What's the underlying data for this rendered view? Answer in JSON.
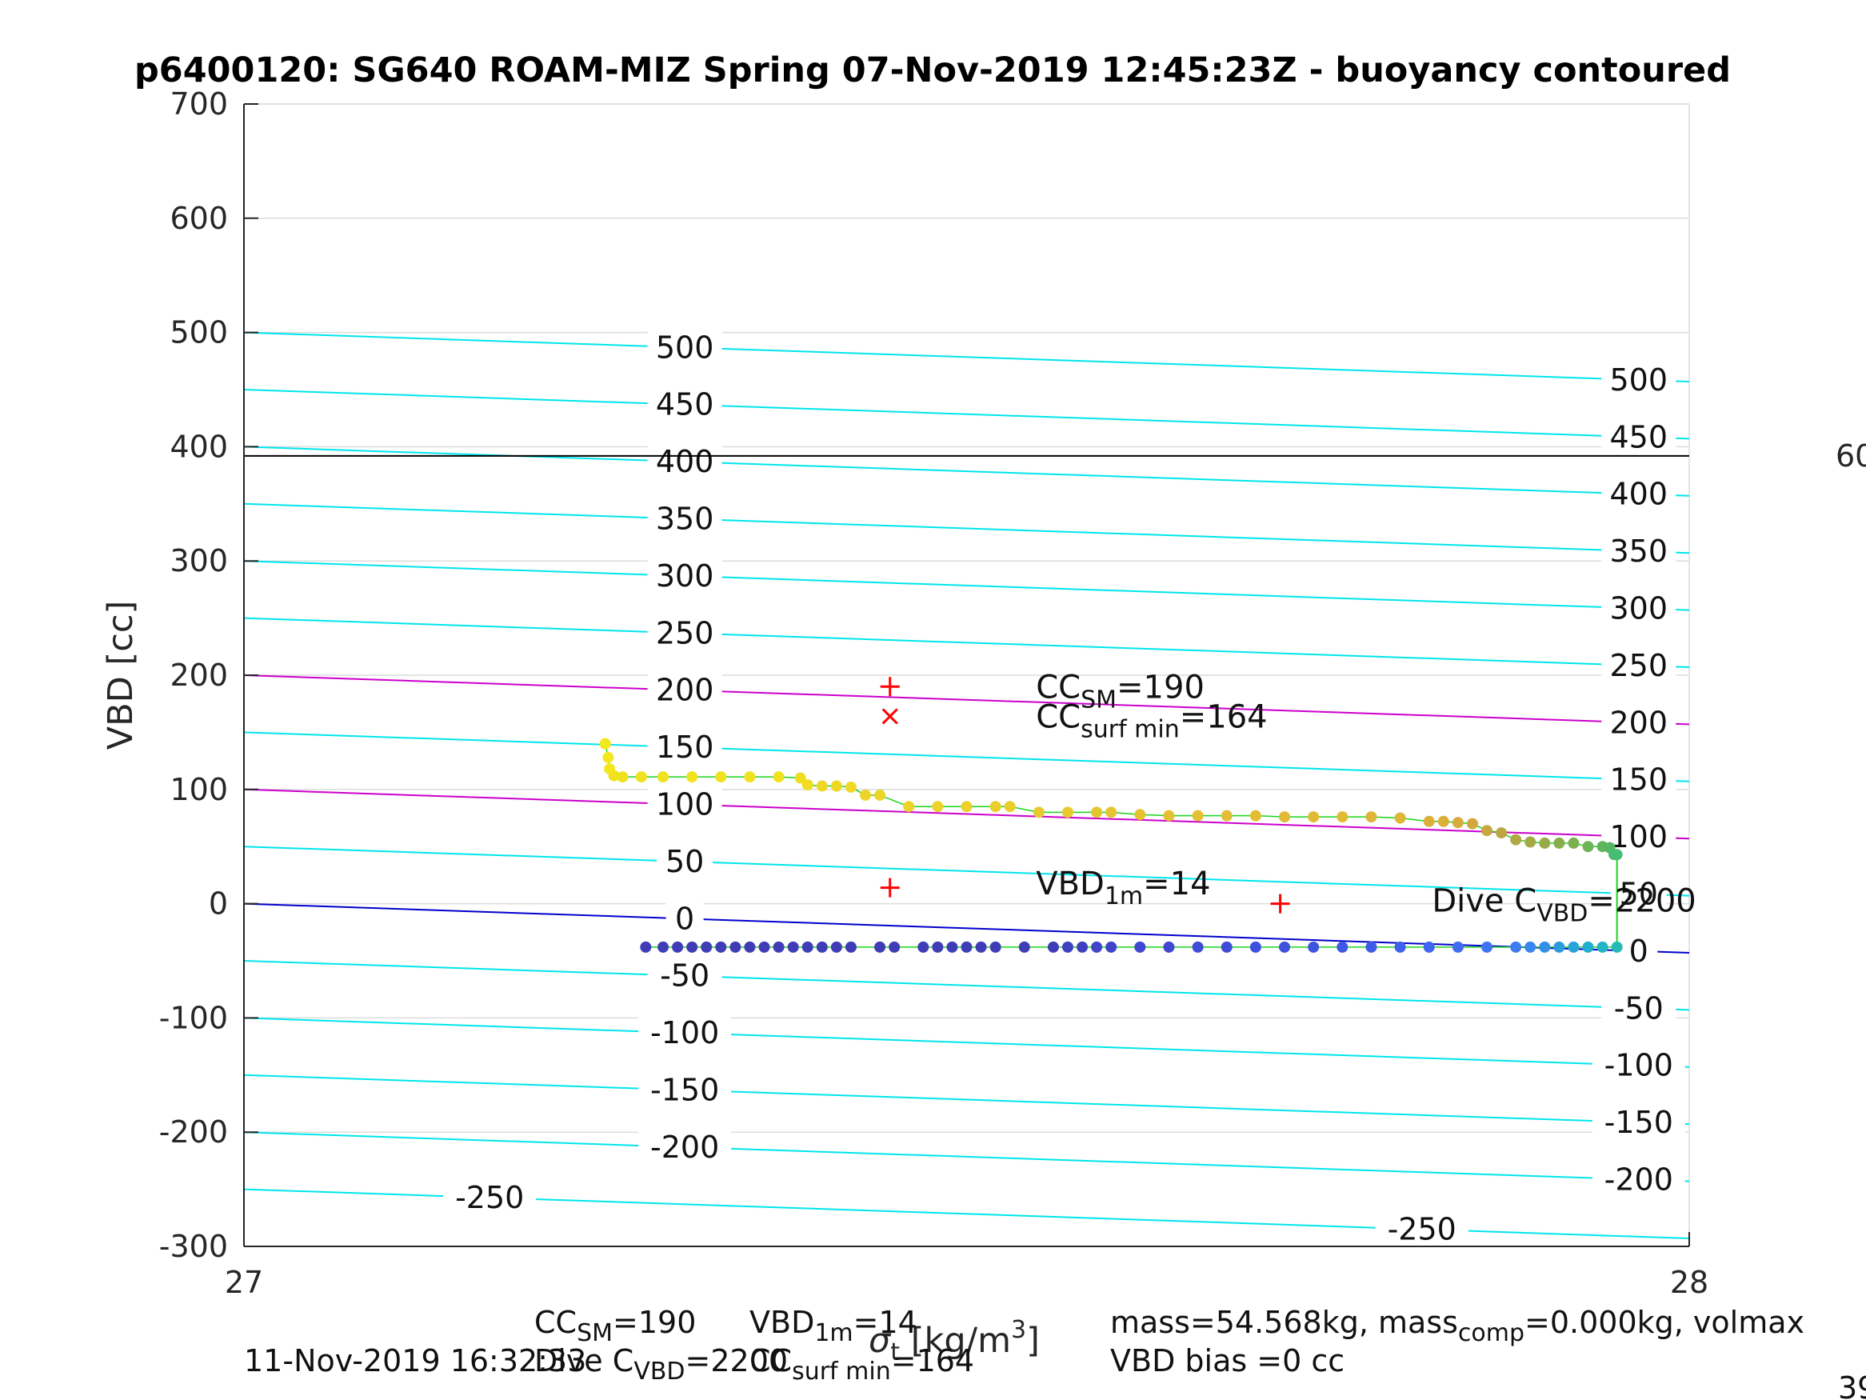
{
  "chart_data": {
    "type": "scatter",
    "title": "p6400120: SG640 ROAM-MIZ Spring 07-Nov-2019 12:45:23Z - buoyancy contoured",
    "ylabel": "VBD [cc]",
    "xlabel_main": "σ",
    "xlabel_sub": "t",
    "xlabel_units": " [kg/m",
    "xlabel_units_sup": "3",
    "xlabel_units_end": "]",
    "xlim": [
      27,
      28
    ],
    "ylim": [
      -300,
      700
    ],
    "xticks": [
      "27",
      "28"
    ],
    "yticks": [
      "-300",
      "-200",
      "-100",
      "0",
      "100",
      "200",
      "300",
      "400",
      "500",
      "600",
      "700"
    ],
    "grid": true,
    "contours": {
      "slope_per_sigma": -43,
      "levels": [
        -250,
        -200,
        -150,
        -100,
        -50,
        0,
        50,
        100,
        150,
        200,
        250,
        300,
        350,
        400,
        450,
        500
      ],
      "labels_left": [
        "-250",
        "-200",
        "-150",
        "-100",
        "-50",
        "0",
        "50",
        "100",
        "150",
        "200",
        "250",
        "300",
        "350",
        "400",
        "450",
        "500"
      ],
      "labels_right": [
        "-250",
        "-200",
        "-150",
        "-100",
        "-50",
        "0",
        "50",
        "100",
        "150",
        "200",
        "250",
        "300",
        "350",
        "400",
        "450",
        "500"
      ],
      "color": "#00e5ee",
      "zero_color": "#0000cc",
      "highlight_levels": [
        100,
        200
      ],
      "highlight_color": "#cc00cc"
    },
    "reference_line": {
      "vbd": 392,
      "color": "#000000",
      "label": "60"
    },
    "series": [
      {
        "role": "climb",
        "x": [
          27.25,
          27.252,
          27.253,
          27.256,
          27.262,
          27.275,
          27.29,
          27.31,
          27.33,
          27.35,
          27.37,
          27.385,
          27.39,
          27.4,
          27.41,
          27.42,
          27.43,
          27.44,
          27.46,
          27.48,
          27.5,
          27.52,
          27.53,
          27.55,
          27.57,
          27.59,
          27.6,
          27.62,
          27.64,
          27.66,
          27.68,
          27.7,
          27.72,
          27.74,
          27.76,
          27.78,
          27.8,
          27.82,
          27.83,
          27.84,
          27.85,
          27.86,
          27.87,
          27.88,
          27.89,
          27.9,
          27.91,
          27.92,
          27.93,
          27.94,
          27.945,
          27.948,
          27.95
        ],
        "y": [
          140,
          128,
          118,
          112,
          111,
          111,
          111,
          111,
          111,
          111,
          111,
          110,
          104,
          103,
          103,
          102,
          95,
          95,
          85,
          85,
          85,
          85,
          85,
          80,
          80,
          80,
          80,
          78,
          77,
          77,
          77,
          77,
          76,
          76,
          76,
          76,
          75,
          72,
          72,
          71,
          70,
          64,
          62,
          56,
          54,
          53,
          53,
          53,
          50,
          50,
          49,
          43,
          43
        ],
        "colors": [
          "#f3e81e",
          "#f3e81e",
          "#f3e81e",
          "#f1e21f",
          "#f1e21f",
          "#f1e21f",
          "#f1e21f",
          "#f1e21f",
          "#f1e21f",
          "#f1e21f",
          "#f1e21f",
          "#f0dc22",
          "#f0dc22",
          "#efd825",
          "#efd825",
          "#efd825",
          "#eed428",
          "#eed428",
          "#ecd22a",
          "#ecd22a",
          "#ecd22a",
          "#eace2c",
          "#eace2c",
          "#e8ca2e",
          "#e8ca2e",
          "#e6c630",
          "#e6c630",
          "#e6c231",
          "#e4c032",
          "#e4c032",
          "#e3bd34",
          "#e3bd34",
          "#e2ba36",
          "#e2ba36",
          "#e2ba36",
          "#e0b638",
          "#e0b638",
          "#dcaf3a",
          "#dcaf3a",
          "#d7ab3c",
          "#d2a83e",
          "#c8a640",
          "#bea642",
          "#b0a844",
          "#a4aa46",
          "#98ab48",
          "#8aad4c",
          "#7cb050",
          "#6eb356",
          "#60b55c",
          "#54b863",
          "#4cbb6c",
          "#47bd74"
        ]
      },
      {
        "role": "dive",
        "x": [
          27.278,
          27.29,
          27.3,
          27.31,
          27.32,
          27.33,
          27.34,
          27.35,
          27.36,
          27.37,
          27.38,
          27.39,
          27.4,
          27.41,
          27.42,
          27.44,
          27.45,
          27.47,
          27.48,
          27.49,
          27.5,
          27.51,
          27.52,
          27.54,
          27.56,
          27.57,
          27.58,
          27.59,
          27.6,
          27.62,
          27.64,
          27.66,
          27.68,
          27.7,
          27.72,
          27.74,
          27.76,
          27.78,
          27.8,
          27.82,
          27.84,
          27.86,
          27.88,
          27.89,
          27.9,
          27.91,
          27.92,
          27.93,
          27.94,
          27.95
        ],
        "y": [
          -38,
          -38,
          -38,
          -38,
          -38,
          -38,
          -38,
          -38,
          -38,
          -38,
          -38,
          -38,
          -38,
          -38,
          -38,
          -38,
          -38,
          -38,
          -38,
          -38,
          -38,
          -38,
          -38,
          -38,
          -38,
          -38,
          -38,
          -38,
          -38,
          -38,
          -38,
          -38,
          -38,
          -38,
          -38,
          -38,
          -38,
          -38,
          -38,
          -38,
          -38,
          -38,
          -38,
          -38,
          -38,
          -38,
          -38,
          -38,
          -38,
          -38
        ],
        "colors": [
          "#3f3db5",
          "#3f3db5",
          "#3f3db5",
          "#3f3db5",
          "#3f3db5",
          "#3f3db5",
          "#3f3db5",
          "#3f3db5",
          "#3f3db5",
          "#3f3db5",
          "#3f3db5",
          "#3f3db5",
          "#3f3db5",
          "#3f3db5",
          "#3f3db5",
          "#3f3db5",
          "#3f3db5",
          "#3f3db5",
          "#3f3db5",
          "#3f3db5",
          "#3f3db5",
          "#3f3db5",
          "#3f3db5",
          "#3f3db5",
          "#3f3db5",
          "#3f40c0",
          "#3f40c0",
          "#3f44c8",
          "#3f44c8",
          "#3f48d0",
          "#3f48d0",
          "#3f4cd6",
          "#3f4cd6",
          "#3f50dc",
          "#3f50dc",
          "#3f54e0",
          "#3f58e4",
          "#3f5ce8",
          "#3f60ec",
          "#3f66ef",
          "#3f6cf1",
          "#3f74f2",
          "#3f7cf2",
          "#3a86ee",
          "#3490e6",
          "#2e9ade",
          "#28a4d6",
          "#22aece",
          "#20b5c4",
          "#24baba"
        ]
      }
    ],
    "connector": {
      "x": 27.95,
      "y_from": 43,
      "y_to": -38,
      "color": "#1ad41a"
    },
    "markers": [
      {
        "x": 27.447,
        "y": 190,
        "symbol": "+",
        "color": "#ff0000"
      },
      {
        "x": 27.447,
        "y": 164,
        "symbol": "x",
        "color": "#ff0000"
      },
      {
        "x": 27.447,
        "y": 14,
        "symbol": "+",
        "color": "#ff0000"
      },
      {
        "x": 27.717,
        "y": 0,
        "symbol": "+",
        "color": "#ff0000"
      }
    ],
    "annotations": [
      {
        "x": 27.548,
        "y": 190,
        "main": "CC",
        "sub": "SM",
        "tail": "=190"
      },
      {
        "x": 27.548,
        "y": 164,
        "main": "CC",
        "sub": "surf min",
        "tail": "=164"
      },
      {
        "x": 27.548,
        "y": 18,
        "main": "VBD",
        "sub": "1m",
        "tail": "=14"
      },
      {
        "x": 27.822,
        "y": 3,
        "main": "Dive C",
        "sub": "VBD",
        "tail": "=2200"
      }
    ]
  },
  "footer": {
    "timestamp": "11-Nov-2019 16:32:33",
    "line1_a": "CC",
    "line1_a_sub": "SM",
    "line1_a_tail": "=190",
    "line1_b": "VBD",
    "line1_b_sub": "1m",
    "line1_b_tail": "=14",
    "line2_a": "Dive C",
    "line2_a_sub": "VBD",
    "line2_a_tail": "=2200",
    "line2_b": "CC",
    "line2_b_sub": "surf min",
    "line2_b_tail": "=164",
    "right_line1_a": "mass=54.568kg, mass",
    "right_line1_sub": "comp",
    "right_line1_b": "=0.000kg, volmax",
    "right_line2": "VBD bias =0 cc",
    "corner_text": "39"
  }
}
